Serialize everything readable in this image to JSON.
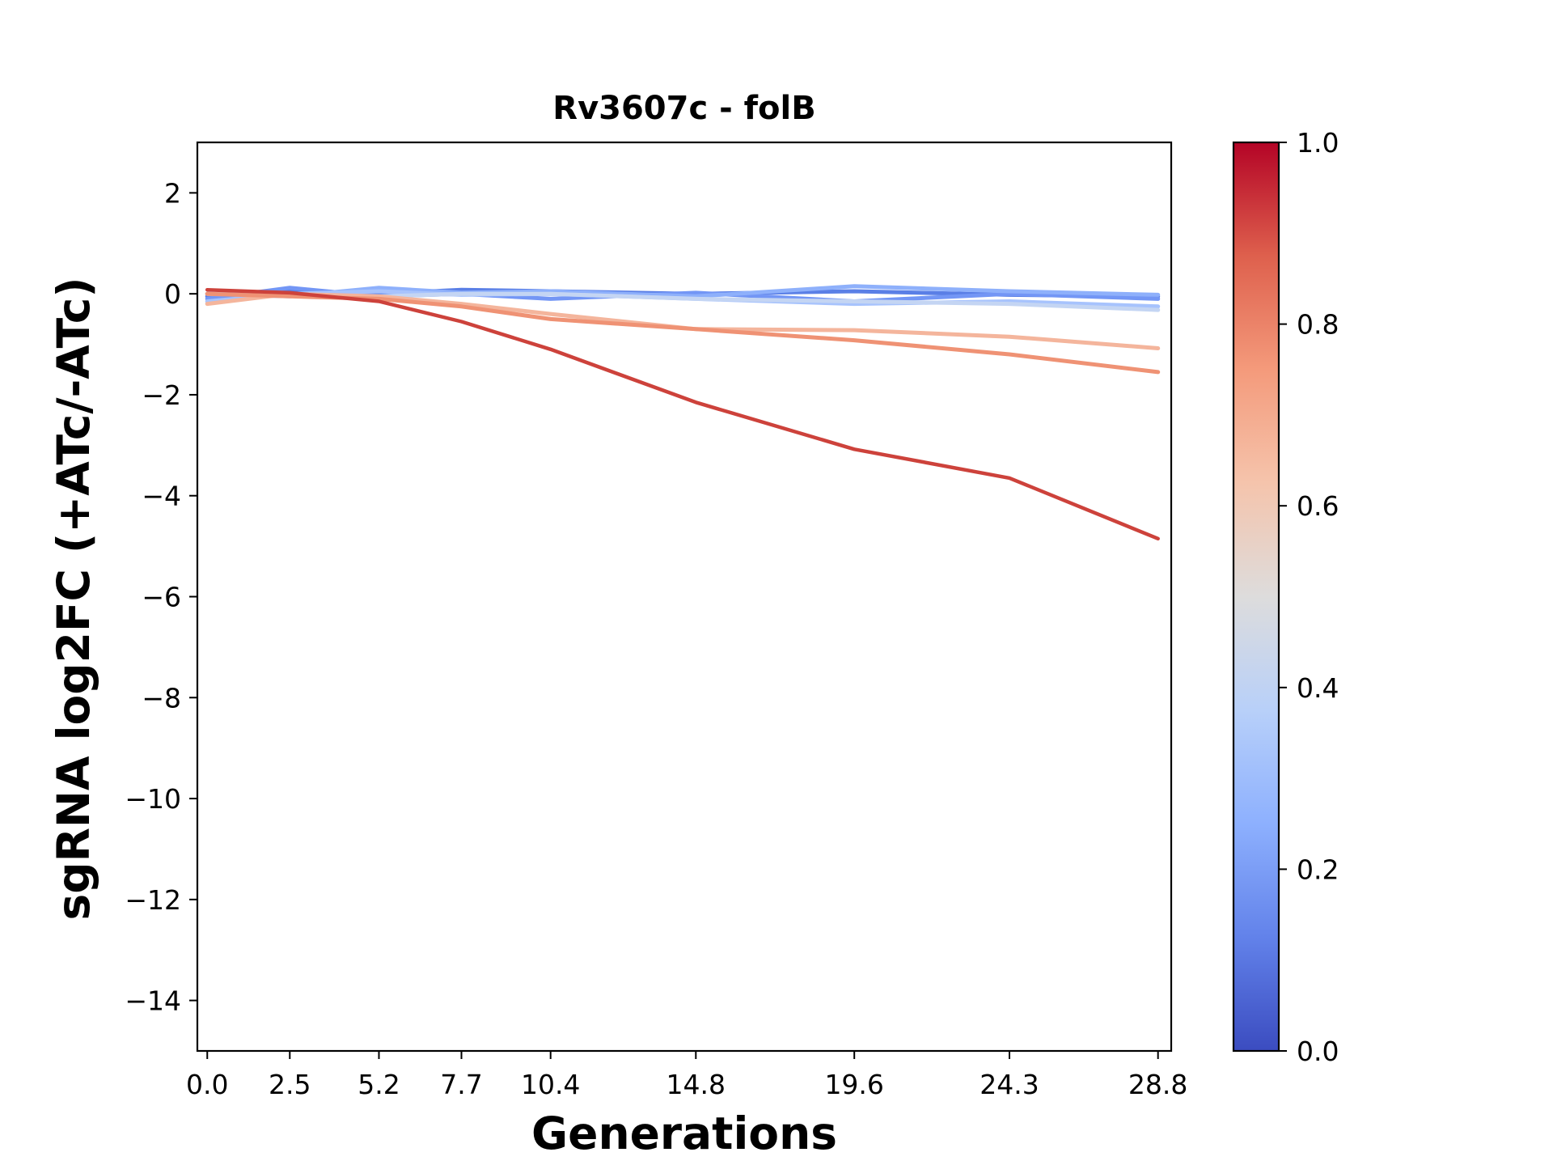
{
  "chart_data": {
    "type": "line",
    "title": "Rv3607c - folB",
    "xlabel": "Generations",
    "ylabel": "sgRNA log2FC (+ATc/-ATc)",
    "xlim": [
      -0.3,
      29.2
    ],
    "ylim": [
      -15,
      3
    ],
    "x_ticks": [
      0.0,
      2.5,
      5.2,
      7.7,
      10.4,
      14.8,
      19.6,
      24.3,
      28.8
    ],
    "x_tick_labels": [
      "0.0",
      "2.5",
      "5.2",
      "7.7",
      "10.4",
      "14.8",
      "19.6",
      "24.3",
      "28.8"
    ],
    "y_ticks": [
      2,
      0,
      -2,
      -4,
      -6,
      -8,
      -10,
      -12,
      -14
    ],
    "y_tick_labels": [
      "2",
      "0",
      "−2",
      "−4",
      "−6",
      "−8",
      "−10",
      "−12",
      "−14"
    ],
    "grid": false,
    "x": [
      0.0,
      2.5,
      5.2,
      7.7,
      10.4,
      14.8,
      19.6,
      24.3,
      28.8
    ],
    "series": [
      {
        "color_value": 0.12,
        "color": "#5a7fe6",
        "values": [
          -0.05,
          0.05,
          0.0,
          0.08,
          0.05,
          0.0,
          0.05,
          -0.02,
          -0.05
        ]
      },
      {
        "color_value": 0.2,
        "color": "#7396f5",
        "values": [
          -0.1,
          0.12,
          -0.05,
          0.0,
          -0.1,
          0.02,
          -0.15,
          0.0,
          -0.1
        ]
      },
      {
        "color_value": 0.28,
        "color": "#8eb0fb",
        "values": [
          0.0,
          -0.05,
          0.12,
          0.02,
          0.05,
          -0.05,
          0.15,
          0.05,
          -0.02
        ]
      },
      {
        "color_value": 0.35,
        "color": "#a7c3fd",
        "values": [
          -0.15,
          0.0,
          0.05,
          -0.02,
          0.0,
          -0.1,
          -0.2,
          -0.15,
          -0.25
        ]
      },
      {
        "color_value": 0.42,
        "color": "#c4d5f3",
        "values": [
          0.0,
          -0.02,
          -0.05,
          0.0,
          0.0,
          -0.1,
          -0.15,
          -0.2,
          -0.32
        ]
      },
      {
        "color_value": 0.68,
        "color": "#f4b59c",
        "values": [
          -0.2,
          0.0,
          -0.05,
          -0.2,
          -0.4,
          -0.7,
          -0.72,
          -0.85,
          -1.08
        ]
      },
      {
        "color_value": 0.78,
        "color": "#ef9274",
        "values": [
          0.0,
          -0.05,
          -0.1,
          -0.25,
          -0.5,
          -0.7,
          -0.92,
          -1.2,
          -1.55
        ]
      },
      {
        "color_value": 0.92,
        "color": "#cd423b",
        "values": [
          0.08,
          0.02,
          -0.15,
          -0.55,
          -1.1,
          -2.15,
          -3.08,
          -3.65,
          -4.85
        ]
      }
    ],
    "colorbar": {
      "min": 0.0,
      "max": 1.0,
      "ticks": [
        0.0,
        0.2,
        0.4,
        0.6,
        0.8,
        1.0
      ],
      "tick_labels": [
        "0.0",
        "0.2",
        "0.4",
        "0.6",
        "0.8",
        "1.0"
      ],
      "colormap": "coolwarm",
      "stops": [
        "#3b4cc0",
        "#6282ea",
        "#8db0fe",
        "#b8d0f9",
        "#dddcdc",
        "#f5c4ac",
        "#f49a7b",
        "#de604d",
        "#b40426"
      ]
    }
  }
}
